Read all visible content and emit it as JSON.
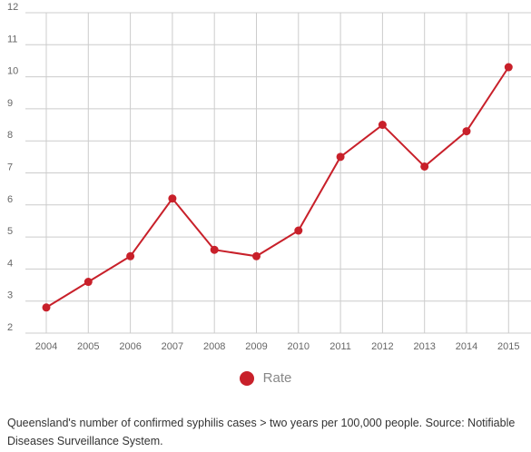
{
  "chart_data": {
    "type": "line",
    "categories": [
      "2004",
      "2005",
      "2006",
      "2007",
      "2008",
      "2009",
      "2010",
      "2011",
      "2012",
      "2013",
      "2014",
      "2015"
    ],
    "series": [
      {
        "name": "Rate",
        "values": [
          2.8,
          3.6,
          4.4,
          6.2,
          4.6,
          4.4,
          5.2,
          7.5,
          8.5,
          7.2,
          8.3,
          10.3
        ]
      }
    ],
    "ylim": [
      2,
      12
    ],
    "yticks": [
      2,
      3,
      4,
      5,
      6,
      7,
      8,
      9,
      10,
      11,
      12
    ],
    "grid": true,
    "legend_position": "bottom-center"
  },
  "colors": {
    "series": "#c8202a",
    "grid": "#cccccc",
    "tick_text": "#666666"
  },
  "caption": "Queensland's number of confirmed  syphilis cases > two years per 100,000 people. Source: Notifiable Diseases Surveillance System."
}
